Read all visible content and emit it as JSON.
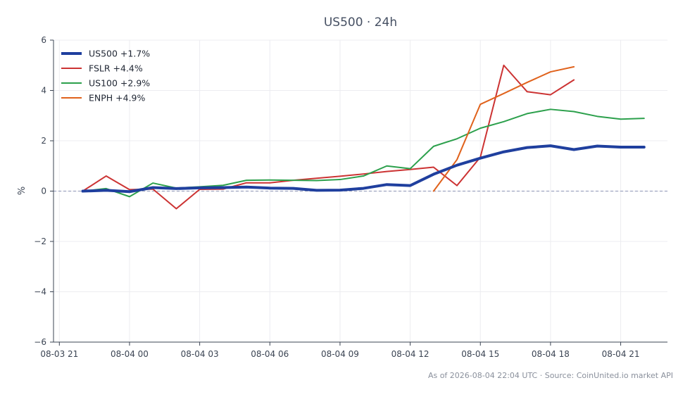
{
  "chart_data": {
    "type": "line",
    "title": "US500 · 24h",
    "xlabel": "",
    "ylabel": "%",
    "ylim": [
      -6,
      6
    ],
    "yticks": [
      -6,
      -4,
      -2,
      0,
      2,
      4,
      6
    ],
    "ytick_labels": [
      "−6",
      "−4",
      "−2",
      "0",
      "2",
      "4",
      "6"
    ],
    "xlim": [
      "2026-08-03 20:45",
      "2026-08-04 23:00"
    ],
    "xticks": [
      "08-03 21",
      "08-04 00",
      "08-04 03",
      "08-04 06",
      "08-04 09",
      "08-04 12",
      "08-04 15",
      "08-04 18",
      "08-04 21"
    ],
    "grid": true,
    "zero_line": true,
    "legend_position": "top-left",
    "series": [
      {
        "name": "US500 +1.7%",
        "color": "#1f3f9e",
        "emphasis": true,
        "x": [
          "2026-08-03 22:00",
          "2026-08-03 23:00",
          "2026-08-04 00:00",
          "2026-08-04 01:00",
          "2026-08-04 02:00",
          "2026-08-04 03:00",
          "2026-08-04 04:00",
          "2026-08-04 05:00",
          "2026-08-04 06:00",
          "2026-08-04 07:00",
          "2026-08-04 08:00",
          "2026-08-04 09:00",
          "2026-08-04 10:00",
          "2026-08-04 11:00",
          "2026-08-04 12:00",
          "2026-08-04 13:00",
          "2026-08-04 14:00",
          "2026-08-04 15:00",
          "2026-08-04 16:00",
          "2026-08-04 17:00",
          "2026-08-04 18:00",
          "2026-08-04 19:00",
          "2026-08-04 20:00",
          "2026-08-04 21:00",
          "2026-08-04 22:00"
        ],
        "y": [
          0.0,
          0.03,
          -0.02,
          0.14,
          0.1,
          0.13,
          0.14,
          0.16,
          0.12,
          0.11,
          0.03,
          0.04,
          0.11,
          0.26,
          0.22,
          0.67,
          1.03,
          1.31,
          1.56,
          1.73,
          1.8,
          1.65,
          1.79,
          1.75,
          1.75
        ]
      },
      {
        "name": "FSLR +4.4%",
        "color": "#cc3333",
        "emphasis": false,
        "x": [
          "2026-08-03 22:00",
          "2026-08-03 23:00",
          "2026-08-04 00:00",
          "2026-08-04 01:00",
          "2026-08-04 02:00",
          "2026-08-04 03:00",
          "2026-08-04 04:00",
          "2026-08-04 05:00",
          "2026-08-04 06:00",
          "2026-08-04 07:00",
          "2026-08-04 08:00",
          "2026-08-04 09:00",
          "2026-08-04 10:00",
          "2026-08-04 11:00",
          "2026-08-04 12:00",
          "2026-08-04 13:00",
          "2026-08-04 14:00",
          "2026-08-04 15:00",
          "2026-08-04 16:00",
          "2026-08-04 17:00",
          "2026-08-04 18:00",
          "2026-08-04 19:00"
        ],
        "y": [
          0.0,
          0.6,
          0.06,
          0.08,
          -0.7,
          0.07,
          0.08,
          0.33,
          0.33,
          0.43,
          0.51,
          0.59,
          0.68,
          0.78,
          0.86,
          0.95,
          0.22,
          1.35,
          5.0,
          3.95,
          3.83,
          4.42
        ]
      },
      {
        "name": "US100 +2.9%",
        "color": "#2ca04c",
        "emphasis": false,
        "x": [
          "2026-08-03 22:00",
          "2026-08-03 23:00",
          "2026-08-04 00:00",
          "2026-08-04 01:00",
          "2026-08-04 02:00",
          "2026-08-04 03:00",
          "2026-08-04 04:00",
          "2026-08-04 05:00",
          "2026-08-04 06:00",
          "2026-08-04 07:00",
          "2026-08-04 08:00",
          "2026-08-04 09:00",
          "2026-08-04 10:00",
          "2026-08-04 11:00",
          "2026-08-04 12:00",
          "2026-08-04 13:00",
          "2026-08-04 14:00",
          "2026-08-04 15:00",
          "2026-08-04 16:00",
          "2026-08-04 17:00",
          "2026-08-04 18:00",
          "2026-08-04 19:00",
          "2026-08-04 20:00",
          "2026-08-04 21:00",
          "2026-08-04 22:00"
        ],
        "y": [
          0.0,
          0.1,
          -0.22,
          0.32,
          0.12,
          0.17,
          0.23,
          0.43,
          0.44,
          0.43,
          0.42,
          0.46,
          0.6,
          1.0,
          0.89,
          1.78,
          2.08,
          2.5,
          2.76,
          3.08,
          3.25,
          3.16,
          2.97,
          2.86,
          2.89
        ]
      },
      {
        "name": "ENPH +4.9%",
        "color": "#e0621c",
        "emphasis": false,
        "x": [
          "2026-08-04 13:00",
          "2026-08-04 14:00",
          "2026-08-04 15:00",
          "2026-08-04 16:00",
          "2026-08-04 17:00",
          "2026-08-04 18:00",
          "2026-08-04 19:00"
        ],
        "y": [
          0.0,
          1.25,
          3.45,
          3.88,
          4.32,
          4.74,
          4.94
        ]
      }
    ]
  },
  "footer": "As of 2026-08-04 22:04 UTC · Source: CoinUnited.io market API"
}
